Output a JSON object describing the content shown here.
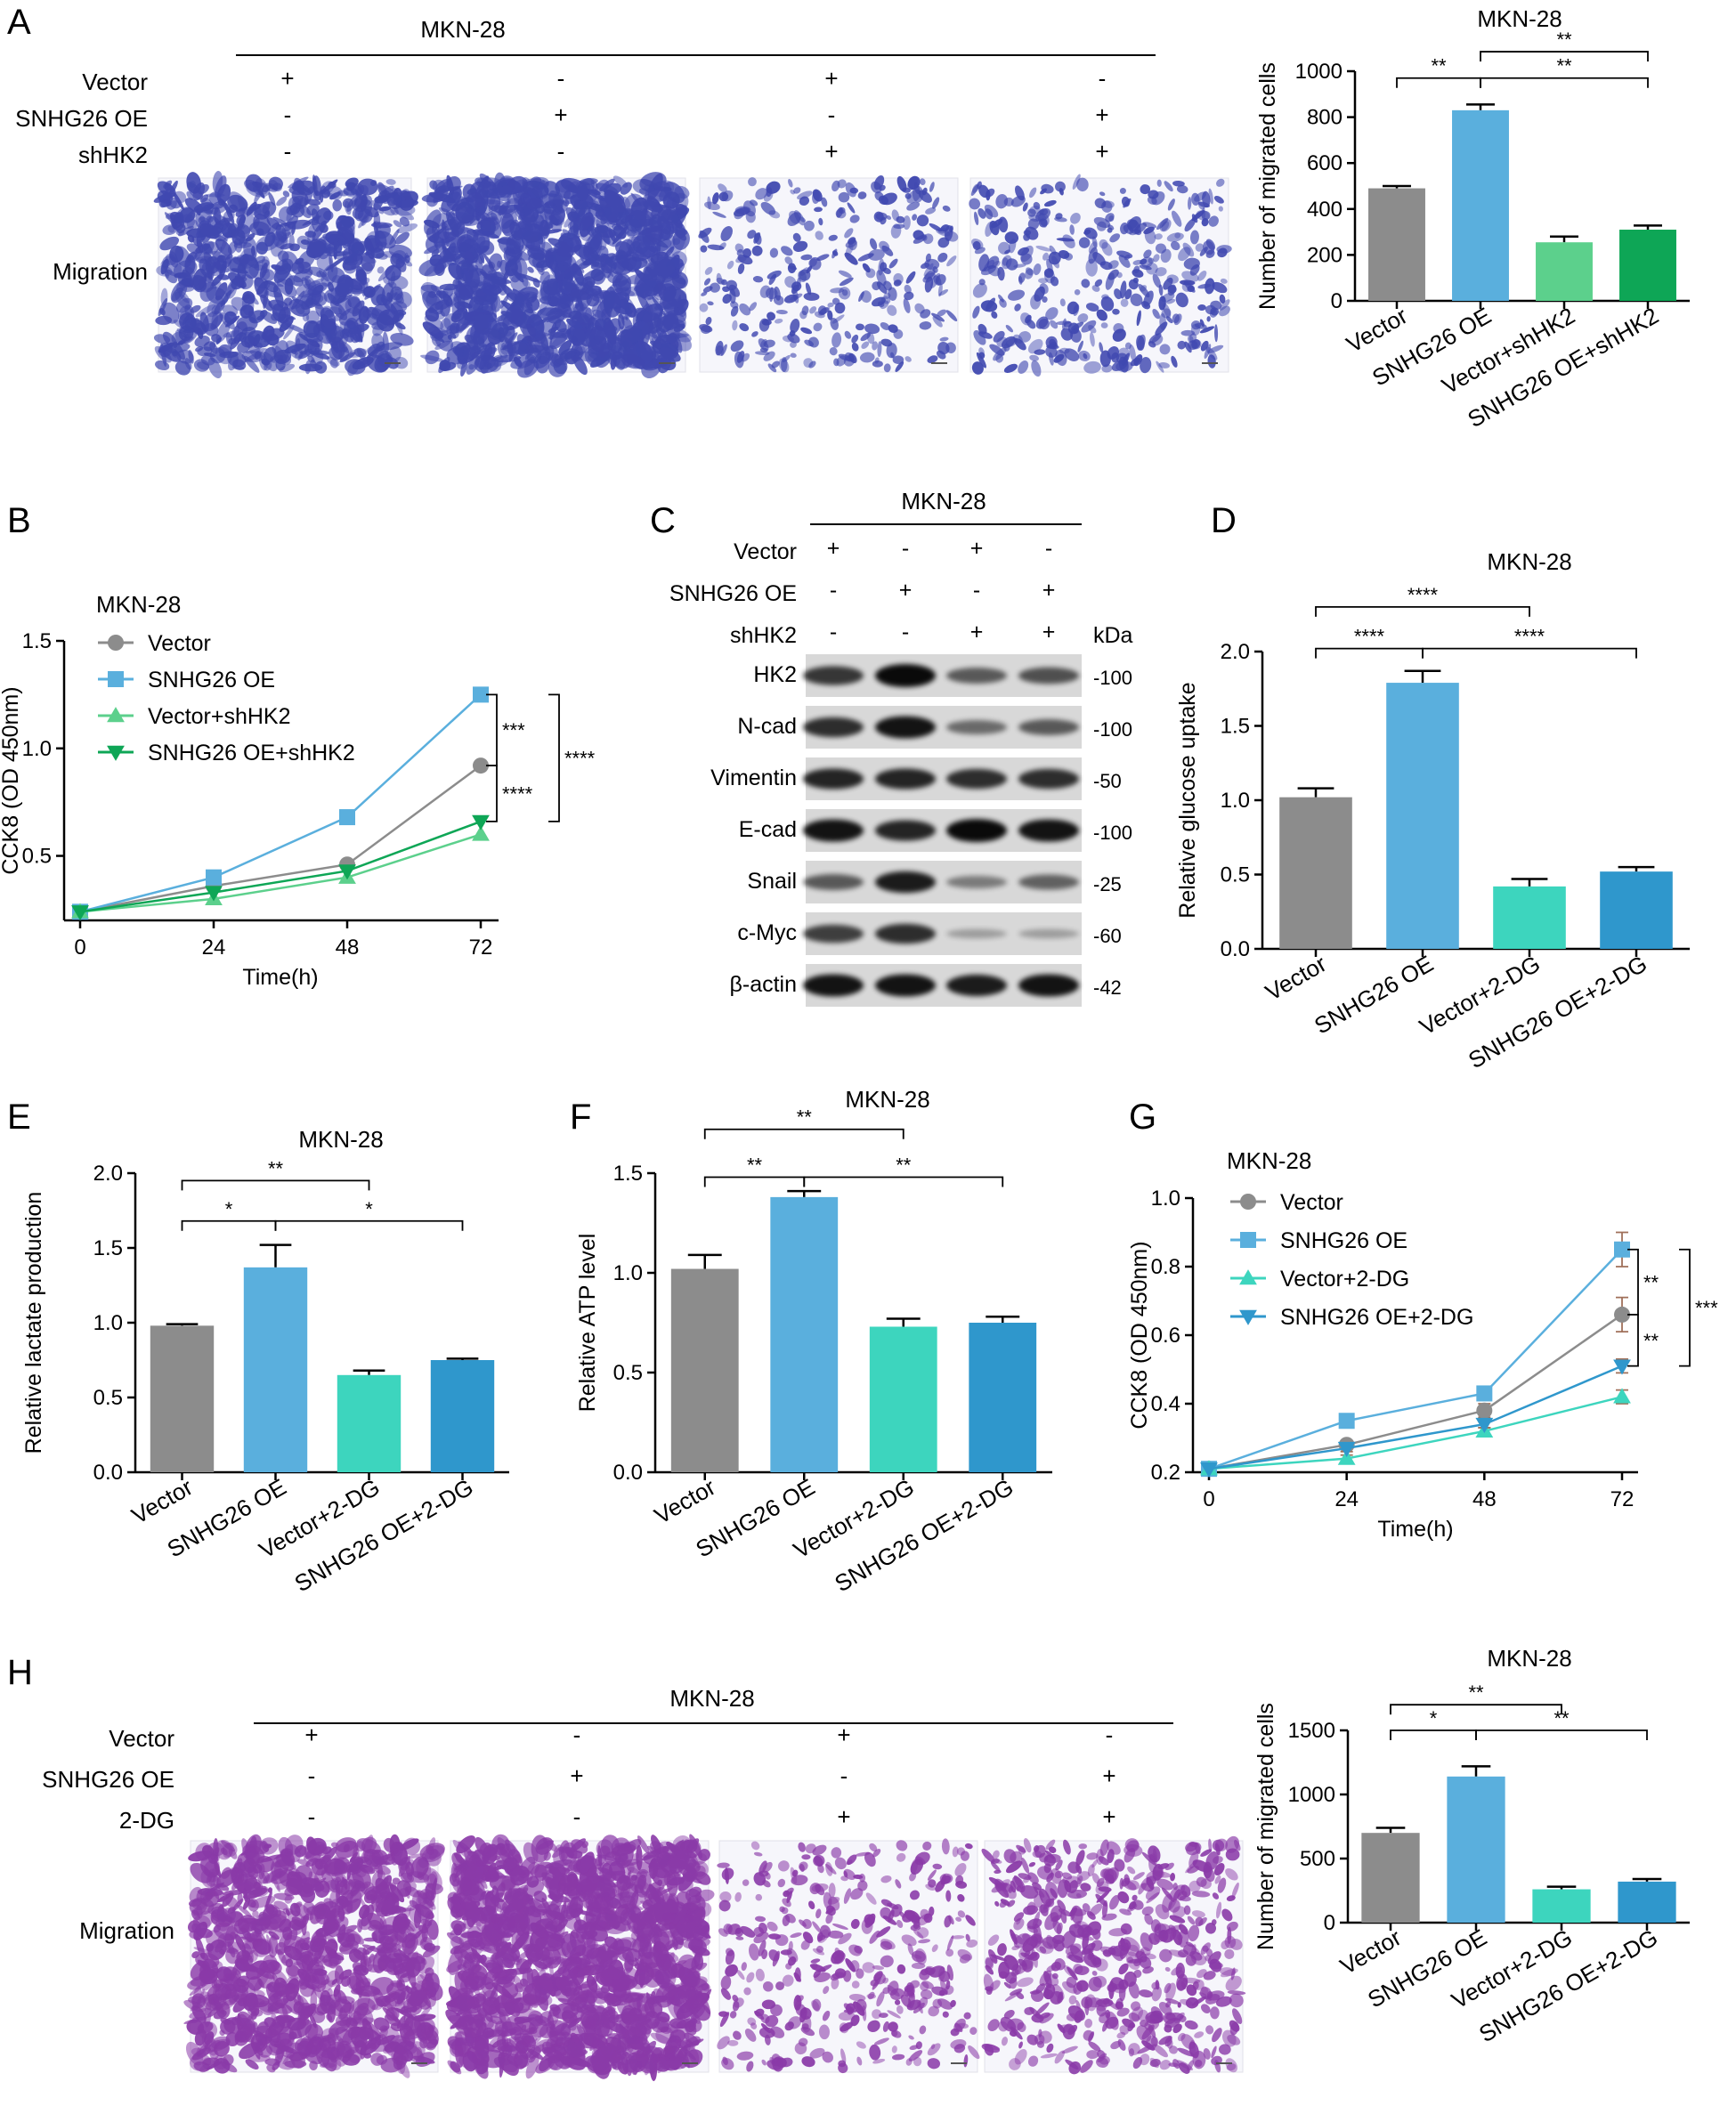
{
  "colors": {
    "gray": "#8c8c8c",
    "blue": "#5aafdd",
    "lightgreen": "#5cd08c",
    "green": "#0ea656",
    "teal": "#3dd5be",
    "darkblue": "#2f97cc",
    "stain_blue": "#4048b0",
    "stain_purple": "#8a3aa8",
    "errbar_brown": "#a0705a"
  },
  "panelA": {
    "letter": "A",
    "header": "MKN-28",
    "rows": [
      {
        "label": "Vector",
        "signs": [
          "+",
          "-",
          "+",
          "-"
        ]
      },
      {
        "label": "SNHG26 OE",
        "signs": [
          "-",
          "+",
          "-",
          "+"
        ]
      },
      {
        "label": "shHK2",
        "signs": [
          "-",
          "-",
          "+",
          "+"
        ]
      }
    ],
    "image_row_label": "Migration"
  },
  "panelB": {
    "letter": "B"
  },
  "panelC": {
    "letter": "C",
    "header": "MKN-28",
    "rows": [
      {
        "label": "Vector",
        "signs": [
          "+",
          "-",
          "+",
          "-"
        ]
      },
      {
        "label": "SNHG26 OE",
        "signs": [
          "-",
          "+",
          "-",
          "+"
        ]
      },
      {
        "label": "shHK2",
        "signs": [
          "-",
          "-",
          "+",
          "+"
        ]
      }
    ],
    "kda_label": "kDa",
    "blots": [
      {
        "name": "HK2",
        "kda": "-100"
      },
      {
        "name": "N-cad",
        "kda": "-100"
      },
      {
        "name": "Vimentin",
        "kda": "-50"
      },
      {
        "name": "E-cad",
        "kda": "-100"
      },
      {
        "name": "Snail",
        "kda": "-25"
      },
      {
        "name": "c-Myc",
        "kda": "-60"
      },
      {
        "name": "β-actin",
        "kda": "-42"
      }
    ],
    "intensities": [
      [
        0.75,
        1.0,
        0.55,
        0.6
      ],
      [
        0.8,
        0.95,
        0.45,
        0.55
      ],
      [
        0.85,
        0.85,
        0.8,
        0.8
      ],
      [
        0.95,
        0.85,
        1.0,
        0.95
      ],
      [
        0.55,
        0.9,
        0.35,
        0.5
      ],
      [
        0.7,
        0.8,
        0.15,
        0.15
      ],
      [
        0.95,
        0.95,
        0.9,
        0.95
      ]
    ]
  },
  "panelD": {
    "letter": "D"
  },
  "panelE": {
    "letter": "E"
  },
  "panelF": {
    "letter": "F"
  },
  "panelG": {
    "letter": "G"
  },
  "panelH": {
    "letter": "H",
    "header": "MKN-28",
    "rows": [
      {
        "label": "Vector",
        "signs": [
          "+",
          "-",
          "+",
          "-"
        ]
      },
      {
        "label": "SNHG26 OE",
        "signs": [
          "-",
          "+",
          "-",
          "+"
        ]
      },
      {
        "label": "2-DG",
        "signs": [
          "-",
          "-",
          "+",
          "+"
        ]
      }
    ],
    "image_row_label": "Migration"
  },
  "chart_data": [
    {
      "id": "A",
      "type": "bar",
      "title": "MKN-28",
      "ylabel": "Number of migrated cells",
      "categories": [
        "Vector",
        "SNHG26 OE",
        "Vector+shHK2",
        "SNHG26 OE+shHK2"
      ],
      "values": [
        490,
        830,
        255,
        310
      ],
      "errors": [
        10,
        25,
        25,
        18
      ],
      "colors": [
        "#8c8c8c",
        "#5aafdd",
        "#5cd08c",
        "#0ea656"
      ],
      "ylim": [
        0,
        1000
      ],
      "yticks": [
        0,
        200,
        400,
        600,
        800,
        1000
      ],
      "significance": [
        {
          "from": 0,
          "to": 1,
          "label": "**",
          "y": 970
        },
        {
          "from": 1,
          "to": 3,
          "label": "**",
          "y": 970
        },
        {
          "from": 1,
          "to": 3,
          "label": "**",
          "y": 1085
        }
      ]
    },
    {
      "id": "B",
      "type": "line",
      "title": "MKN-28",
      "xlabel": "Time(h)",
      "ylabel": "CCK8 (OD  450nm)",
      "x": [
        0,
        24,
        48,
        72
      ],
      "xticks": [
        0,
        24,
        48,
        72
      ],
      "ylim": [
        0.2,
        1.5
      ],
      "yticks": [
        0.5,
        1.0,
        1.5
      ],
      "series": [
        {
          "name": "Vector",
          "values": [
            0.24,
            0.36,
            0.46,
            0.92
          ],
          "color": "#8c8c8c",
          "marker": "circle"
        },
        {
          "name": "SNHG26 OE",
          "values": [
            0.24,
            0.4,
            0.68,
            1.25
          ],
          "color": "#5aafdd",
          "marker": "square"
        },
        {
          "name": "Vector+shHK2",
          "values": [
            0.24,
            0.3,
            0.4,
            0.6
          ],
          "color": "#5cd08c",
          "marker": "triangle-up"
        },
        {
          "name": "SNHG26 OE+shHK2",
          "values": [
            0.24,
            0.33,
            0.43,
            0.66
          ],
          "color": "#0ea656",
          "marker": "triangle-down"
        }
      ],
      "significance": [
        {
          "between": [
            "SNHG26 OE",
            "Vector"
          ],
          "label": "***"
        },
        {
          "between": [
            "Vector",
            "SNHG26 OE+shHK2"
          ],
          "label": "****"
        },
        {
          "between": [
            "SNHG26 OE",
            "SNHG26 OE+shHK2"
          ],
          "label": "****"
        }
      ]
    },
    {
      "id": "D",
      "type": "bar",
      "title": "MKN-28",
      "ylabel": "Relative glucose uptake",
      "categories": [
        "Vector",
        "SNHG26 OE",
        "Vector+2-DG",
        "SNHG26 OE+2-DG"
      ],
      "values": [
        1.02,
        1.79,
        0.42,
        0.52
      ],
      "errors": [
        0.06,
        0.08,
        0.05,
        0.03
      ],
      "colors": [
        "#8c8c8c",
        "#5aafdd",
        "#3dd5be",
        "#2f97cc"
      ],
      "ylim": [
        0,
        2.0
      ],
      "yticks": [
        0.0,
        0.5,
        1.0,
        1.5,
        2.0
      ],
      "significance": [
        {
          "from": 0,
          "to": 1,
          "label": "****",
          "y": 2.02
        },
        {
          "from": 1,
          "to": 3,
          "label": "****",
          "y": 2.02
        },
        {
          "from": 0,
          "to": 2,
          "label": "****",
          "y": 2.3
        }
      ]
    },
    {
      "id": "E",
      "type": "bar",
      "title": "MKN-28",
      "ylabel": "Relative lactate production",
      "categories": [
        "Vector",
        "SNHG26 OE",
        "Vector+2-DG",
        "SNHG26 OE+2-DG"
      ],
      "values": [
        0.98,
        1.37,
        0.65,
        0.75
      ],
      "errors": [
        0.01,
        0.15,
        0.03,
        0.01
      ],
      "colors": [
        "#8c8c8c",
        "#5aafdd",
        "#3dd5be",
        "#2f97cc"
      ],
      "ylim": [
        0,
        2.0
      ],
      "yticks": [
        0.0,
        0.5,
        1.0,
        1.5,
        2.0
      ],
      "significance": [
        {
          "from": 0,
          "to": 1,
          "label": "*",
          "y": 1.68
        },
        {
          "from": 1,
          "to": 3,
          "label": "*",
          "y": 1.68
        },
        {
          "from": 0,
          "to": 2,
          "label": "**",
          "y": 1.95
        }
      ]
    },
    {
      "id": "F",
      "type": "bar",
      "title": "MKN-28",
      "ylabel": "Relative ATP level",
      "categories": [
        "Vector",
        "SNHG26 OE",
        "Vector+2-DG",
        "SNHG26 OE+2-DG"
      ],
      "values": [
        1.02,
        1.38,
        0.73,
        0.75
      ],
      "errors": [
        0.07,
        0.03,
        0.04,
        0.03
      ],
      "colors": [
        "#8c8c8c",
        "#5aafdd",
        "#3dd5be",
        "#2f97cc"
      ],
      "ylim": [
        0,
        1.5
      ],
      "yticks": [
        0.0,
        0.5,
        1.0,
        1.5
      ],
      "significance": [
        {
          "from": 0,
          "to": 1,
          "label": "**",
          "y": 1.48
        },
        {
          "from": 1,
          "to": 3,
          "label": "**",
          "y": 1.48
        },
        {
          "from": 0,
          "to": 2,
          "label": "**",
          "y": 1.72
        }
      ]
    },
    {
      "id": "G",
      "type": "line",
      "title": "MKN-28",
      "xlabel": "Time(h)",
      "ylabel": "CCK8 (OD  450nm)",
      "x": [
        0,
        24,
        48,
        72
      ],
      "xticks": [
        0,
        24,
        48,
        72
      ],
      "ylim": [
        0.2,
        1.0
      ],
      "yticks": [
        0.2,
        0.4,
        0.6,
        0.8,
        1.0
      ],
      "series": [
        {
          "name": "Vector",
          "values": [
            0.21,
            0.28,
            0.38,
            0.66
          ],
          "errors": [
            0,
            0.01,
            0.02,
            0.05
          ],
          "color": "#8c8c8c",
          "marker": "circle"
        },
        {
          "name": "SNHG26 OE",
          "values": [
            0.21,
            0.35,
            0.43,
            0.85
          ],
          "errors": [
            0,
            0.01,
            0.02,
            0.05
          ],
          "color": "#5aafdd",
          "marker": "square"
        },
        {
          "name": "Vector+2-DG",
          "values": [
            0.21,
            0.24,
            0.32,
            0.42
          ],
          "errors": [
            0,
            0.01,
            0.01,
            0.02
          ],
          "color": "#3dd5be",
          "marker": "triangle-up"
        },
        {
          "name": "SNHG26 OE+2-DG",
          "values": [
            0.21,
            0.27,
            0.34,
            0.51
          ],
          "errors": [
            0,
            0.01,
            0.01,
            0.02
          ],
          "color": "#2f97cc",
          "marker": "triangle-down"
        }
      ],
      "significance": [
        {
          "between": [
            "SNHG26 OE",
            "Vector"
          ],
          "label": "**"
        },
        {
          "between": [
            "Vector",
            "SNHG26 OE+2-DG"
          ],
          "label": "**"
        },
        {
          "between": [
            "SNHG26 OE",
            "SNHG26 OE+2-DG"
          ],
          "label": "***"
        }
      ]
    },
    {
      "id": "H",
      "type": "bar",
      "title": "MKN-28",
      "ylabel": "Number of migrated cells",
      "categories": [
        "Vector",
        "SNHG26 OE",
        "Vector+2-DG",
        "SNHG26 OE+2-DG"
      ],
      "values": [
        700,
        1140,
        260,
        320
      ],
      "errors": [
        40,
        80,
        20,
        20
      ],
      "colors": [
        "#8c8c8c",
        "#5aafdd",
        "#3dd5be",
        "#2f97cc"
      ],
      "ylim": [
        0,
        1500
      ],
      "yticks": [
        0,
        500,
        1000,
        1500
      ],
      "significance": [
        {
          "from": 0,
          "to": 1,
          "label": "*",
          "y": 1500
        },
        {
          "from": 1,
          "to": 3,
          "label": "**",
          "y": 1500
        },
        {
          "from": 0,
          "to": 2,
          "label": "**",
          "y": 1700
        }
      ]
    }
  ]
}
